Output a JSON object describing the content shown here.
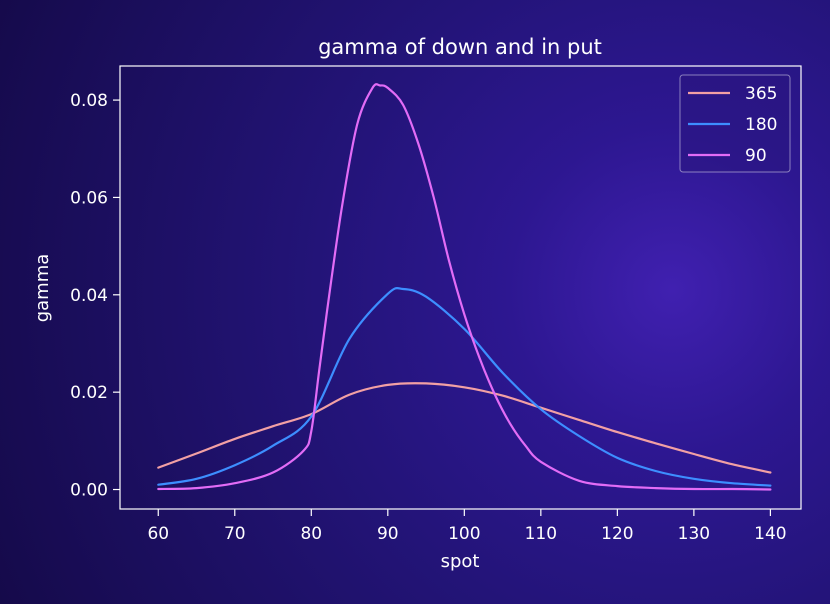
{
  "chart_data": {
    "type": "line",
    "title": "gamma of down and in put",
    "xlabel": "spot",
    "ylabel": "gamma",
    "xlim": [
      55,
      144
    ],
    "ylim": [
      -0.004,
      0.087
    ],
    "xticks": [
      60,
      70,
      80,
      90,
      100,
      110,
      120,
      130,
      140
    ],
    "xtick_labels": [
      "60",
      "70",
      "80",
      "90",
      "100",
      "110",
      "120",
      "130",
      "140"
    ],
    "yticks": [
      0.0,
      0.02,
      0.04,
      0.06,
      0.08
    ],
    "ytick_labels": [
      "0.00",
      "0.02",
      "0.04",
      "0.06",
      "0.08"
    ],
    "grid": false,
    "legend_position": "top-right",
    "series": [
      {
        "name": "365",
        "color": "#f2a0a4",
        "x": [
          60,
          65,
          70,
          75,
          80,
          85,
          90,
          95,
          100,
          105,
          110,
          115,
          120,
          125,
          130,
          135,
          140
        ],
        "y": [
          0.0045,
          0.0074,
          0.0104,
          0.013,
          0.0155,
          0.0195,
          0.0215,
          0.0218,
          0.021,
          0.0193,
          0.0168,
          0.0143,
          0.0118,
          0.0095,
          0.0073,
          0.0052,
          0.0035
        ]
      },
      {
        "name": "180",
        "color": "#3d8eff",
        "x": [
          60,
          65,
          70,
          75,
          80,
          85,
          90,
          92,
          95,
          100,
          105,
          110,
          115,
          120,
          125,
          130,
          135,
          140
        ],
        "y": [
          0.001,
          0.0022,
          0.005,
          0.009,
          0.015,
          0.031,
          0.0402,
          0.0412,
          0.0396,
          0.033,
          0.024,
          0.0165,
          0.011,
          0.0065,
          0.0038,
          0.0022,
          0.0013,
          0.0008
        ]
      },
      {
        "name": "90",
        "color": "#e26cf6",
        "x": [
          60,
          65,
          70,
          75,
          79,
          80,
          81,
          82,
          84,
          86,
          88,
          89,
          90,
          92,
          94,
          96,
          98,
          100,
          102,
          104,
          106,
          108,
          110,
          115,
          120,
          125,
          130,
          135,
          140
        ],
        "y": [
          0.0001,
          0.0003,
          0.0013,
          0.0035,
          0.008,
          0.012,
          0.024,
          0.036,
          0.058,
          0.075,
          0.0825,
          0.083,
          0.0825,
          0.079,
          0.071,
          0.06,
          0.047,
          0.036,
          0.027,
          0.0195,
          0.0135,
          0.009,
          0.0057,
          0.0018,
          0.0007,
          0.0003,
          0.0001,
          0.0001,
          0.0
        ]
      }
    ]
  }
}
